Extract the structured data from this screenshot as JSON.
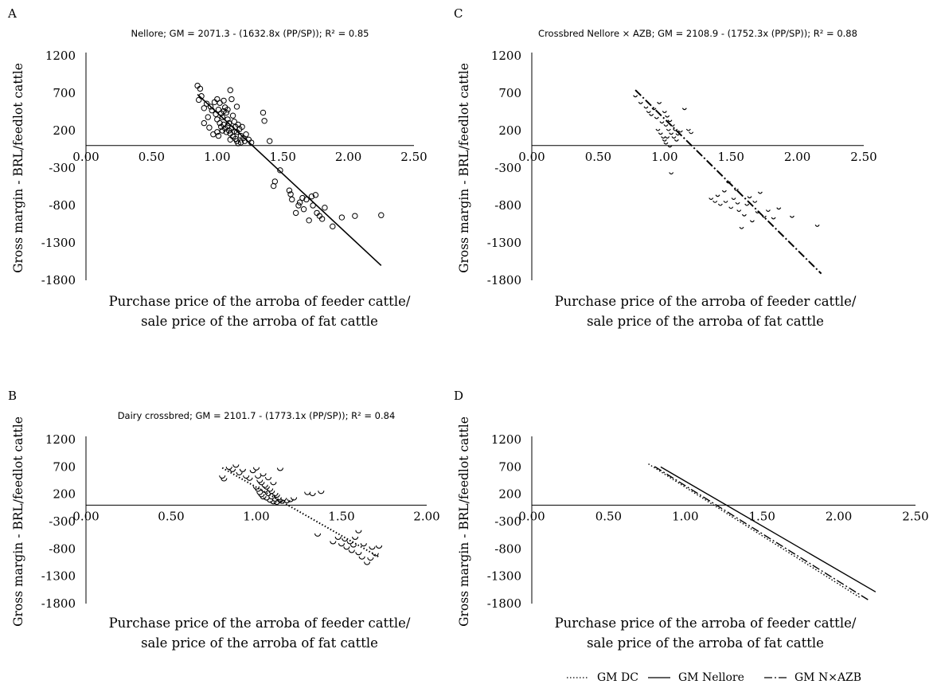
{
  "chart_data": [
    {
      "type": "scatter",
      "panel": "A",
      "title": "Nellore; GM = 2071.3 - (1632.8x (PP/SP)); R² = 0.85",
      "xlabel_lines": [
        "Purchase price of the arroba of feeder cattle/",
        "sale price of the arroba of fat cattle"
      ],
      "ylabel": "Gross margin - BRL/feedlot cattle",
      "xlim": [
        0,
        2.5
      ],
      "ylim": [
        -1800,
        1200
      ],
      "xticks": [
        "0.00",
        "0.50",
        "1.00",
        "1.50",
        "2.00",
        "2.50"
      ],
      "yticks": [
        "1200",
        "700",
        "200",
        "-300",
        "-800",
        "-1300",
        "-1800"
      ],
      "fit": {
        "intercept": 2071.3,
        "slope": -1632.8,
        "x_range": [
          0.85,
          2.25
        ],
        "style": "solid"
      },
      "marker": "circle",
      "series": [
        {
          "values": [
            [
              0.85,
              800
            ],
            [
              0.87,
              760
            ],
            [
              0.88,
              660
            ],
            [
              0.86,
              610
            ],
            [
              0.9,
              500
            ],
            [
              0.92,
              560
            ],
            [
              0.95,
              520
            ],
            [
              0.96,
              470
            ],
            [
              0.98,
              580
            ],
            [
              1.0,
              620
            ],
            [
              1.02,
              570
            ],
            [
              1.01,
              480
            ],
            [
              1.03,
              430
            ],
            [
              1.05,
              600
            ],
            [
              1.04,
              380
            ],
            [
              1.06,
              510
            ],
            [
              1.07,
              440
            ],
            [
              1.08,
              350
            ],
            [
              1.1,
              740
            ],
            [
              1.09,
              300
            ],
            [
              1.11,
              620
            ],
            [
              1.12,
              400
            ],
            [
              1.13,
              320
            ],
            [
              1.14,
              250
            ],
            [
              1.15,
              180
            ],
            [
              1.16,
              280
            ],
            [
              1.17,
              220
            ],
            [
              1.18,
              130
            ],
            [
              1.19,
              250
            ],
            [
              1.2,
              100
            ],
            [
              1.21,
              60
            ],
            [
              1.22,
              150
            ],
            [
              1.24,
              80
            ],
            [
              1.26,
              40
            ],
            [
              1.0,
              350
            ],
            [
              1.02,
              300
            ],
            [
              1.03,
              250
            ],
            [
              1.04,
              200
            ],
            [
              1.05,
              280
            ],
            [
              1.06,
              230
            ],
            [
              1.07,
              180
            ],
            [
              1.08,
              260
            ],
            [
              1.09,
              200
            ],
            [
              1.1,
              160
            ],
            [
              1.11,
              230
            ],
            [
              1.12,
              120
            ],
            [
              1.13,
              190
            ],
            [
              1.14,
              90
            ],
            [
              1.15,
              60
            ],
            [
              1.16,
              30
            ],
            [
              1.0,
              180
            ],
            [
              1.01,
              130
            ],
            [
              0.97,
              150
            ],
            [
              0.94,
              240
            ],
            [
              0.9,
              300
            ],
            [
              0.93,
              380
            ],
            [
              0.99,
              420
            ],
            [
              1.05,
              460
            ],
            [
              1.08,
              480
            ],
            [
              1.15,
              520
            ],
            [
              1.1,
              80
            ],
            [
              1.18,
              40
            ],
            [
              1.35,
              440
            ],
            [
              1.36,
              330
            ],
            [
              1.4,
              60
            ],
            [
              1.48,
              -330
            ],
            [
              1.44,
              -480
            ],
            [
              1.43,
              -540
            ],
            [
              1.55,
              -600
            ],
            [
              1.56,
              -650
            ],
            [
              1.57,
              -720
            ],
            [
              1.6,
              -900
            ],
            [
              1.62,
              -800
            ],
            [
              1.63,
              -760
            ],
            [
              1.65,
              -700
            ],
            [
              1.66,
              -850
            ],
            [
              1.68,
              -720
            ],
            [
              1.7,
              -1000
            ],
            [
              1.72,
              -680
            ],
            [
              1.73,
              -800
            ],
            [
              1.75,
              -660
            ],
            [
              1.76,
              -900
            ],
            [
              1.78,
              -940
            ],
            [
              1.8,
              -980
            ],
            [
              1.82,
              -830
            ],
            [
              1.88,
              -1080
            ],
            [
              1.95,
              -960
            ],
            [
              2.05,
              -940
            ],
            [
              2.25,
              -930
            ]
          ]
        }
      ]
    },
    {
      "type": "scatter",
      "panel": "B",
      "title": "Dairy crossbred; GM = 2101.7 - (1773.1x (PP/SP)); R² = 0.84",
      "xlabel_lines": [
        "Purchase price of the arroba of feeder cattle/",
        "sale price of the arroba of fat cattle"
      ],
      "ylabel": "Gross margin - BRL/feedlot cattle",
      "xlim": [
        0,
        2.0
      ],
      "ylim": [
        -1800,
        1200
      ],
      "xticks": [
        "0.00",
        "0.50",
        "1.00",
        "1.50",
        "2.00"
      ],
      "yticks": [
        "1200",
        "700",
        "200",
        "-300",
        "-800",
        "-1300",
        "-1800"
      ],
      "fit": {
        "intercept": 2101.7,
        "slope": -1773.1,
        "x_range": [
          0.8,
          1.72
        ],
        "style": "dotted"
      },
      "marker": "cup",
      "series": [
        {
          "values": [
            [
              0.8,
              500
            ],
            [
              0.81,
              450
            ],
            [
              0.84,
              660
            ],
            [
              0.86,
              620
            ],
            [
              0.88,
              700
            ],
            [
              0.9,
              560
            ],
            [
              0.92,
              620
            ],
            [
              0.94,
              500
            ],
            [
              0.96,
              460
            ],
            [
              0.98,
              600
            ],
            [
              1.0,
              650
            ],
            [
              1.01,
              500
            ],
            [
              1.02,
              420
            ],
            [
              1.03,
              380
            ],
            [
              1.04,
              540
            ],
            [
              1.05,
              330
            ],
            [
              1.06,
              300
            ],
            [
              1.07,
              470
            ],
            [
              1.08,
              260
            ],
            [
              1.09,
              220
            ],
            [
              1.1,
              380
            ],
            [
              1.11,
              180
            ],
            [
              1.12,
              150
            ],
            [
              1.0,
              300
            ],
            [
              1.01,
              260
            ],
            [
              1.02,
              200
            ],
            [
              1.03,
              160
            ],
            [
              1.04,
              120
            ],
            [
              1.05,
              240
            ],
            [
              1.06,
              100
            ],
            [
              1.07,
              180
            ],
            [
              1.08,
              60
            ],
            [
              1.09,
              120
            ],
            [
              1.1,
              30
            ],
            [
              1.11,
              80
            ],
            [
              1.12,
              20
            ],
            [
              1.13,
              100
            ],
            [
              1.14,
              60
            ],
            [
              1.15,
              40
            ],
            [
              1.16,
              90
            ],
            [
              1.18,
              50
            ],
            [
              1.2,
              70
            ],
            [
              1.22,
              100
            ],
            [
              1.14,
              640
            ],
            [
              1.3,
              200
            ],
            [
              1.33,
              180
            ],
            [
              1.38,
              220
            ],
            [
              1.36,
              -560
            ],
            [
              1.45,
              -700
            ],
            [
              1.48,
              -620
            ],
            [
              1.5,
              -740
            ],
            [
              1.52,
              -650
            ],
            [
              1.53,
              -800
            ],
            [
              1.55,
              -700
            ],
            [
              1.56,
              -860
            ],
            [
              1.57,
              -760
            ],
            [
              1.58,
              -620
            ],
            [
              1.6,
              -900
            ],
            [
              1.6,
              -500
            ],
            [
              1.62,
              -980
            ],
            [
              1.63,
              -740
            ],
            [
              1.65,
              -1080
            ],
            [
              1.67,
              -1000
            ],
            [
              1.68,
              -800
            ],
            [
              1.7,
              -920
            ],
            [
              1.72,
              -780
            ]
          ]
        }
      ]
    },
    {
      "type": "scatter",
      "panel": "C",
      "title": "Crossbred Nellore × AZB; GM = 2108.9 - (1752.3x (PP/SP)); R² = 0.88",
      "xlabel_lines": [
        "Purchase price of the arroba of feeder cattle/",
        "sale price of the arroba of fat cattle"
      ],
      "ylabel": "Gross margin - BRL/feedlot cattle",
      "xlim": [
        0,
        2.5
      ],
      "ylim": [
        -1800,
        1200
      ],
      "xticks": [
        "0.00",
        "0.50",
        "1.00",
        "1.50",
        "2.00",
        "2.50"
      ],
      "yticks": [
        "1200",
        "700",
        "200",
        "-300",
        "-800",
        "-1300",
        "-1800"
      ],
      "fit": {
        "intercept": 2108.9,
        "slope": -1752.3,
        "x_range": [
          0.78,
          2.18
        ],
        "style": "dashdot"
      },
      "marker": "tick",
      "series": [
        {
          "values": [
            [
              0.78,
              650
            ],
            [
              0.82,
              560
            ],
            [
              0.86,
              500
            ],
            [
              0.88,
              440
            ],
            [
              0.9,
              400
            ],
            [
              0.92,
              480
            ],
            [
              0.94,
              360
            ],
            [
              0.96,
              560
            ],
            [
              0.98,
              300
            ],
            [
              1.0,
              440
            ],
            [
              1.01,
              260
            ],
            [
              1.02,
              380
            ],
            [
              1.03,
              200
            ],
            [
              1.04,
              320
            ],
            [
              1.05,
              150
            ],
            [
              1.06,
              260
            ],
            [
              1.07,
              100
            ],
            [
              1.08,
              200
            ],
            [
              1.09,
              60
            ],
            [
              1.1,
              140
            ],
            [
              1.12,
              180
            ],
            [
              1.15,
              480
            ],
            [
              1.18,
              200
            ],
            [
              1.2,
              160
            ],
            [
              0.95,
              200
            ],
            [
              0.97,
              150
            ],
            [
              0.99,
              100
            ],
            [
              1.0,
              60
            ],
            [
              1.01,
              20
            ],
            [
              1.02,
              100
            ],
            [
              1.04,
              -20
            ],
            [
              1.05,
              -380
            ],
            [
              1.35,
              -720
            ],
            [
              1.38,
              -760
            ],
            [
              1.4,
              -680
            ],
            [
              1.42,
              -800
            ],
            [
              1.45,
              -620
            ],
            [
              1.46,
              -760
            ],
            [
              1.48,
              -500
            ],
            [
              1.5,
              -840
            ],
            [
              1.52,
              -720
            ],
            [
              1.54,
              -600
            ],
            [
              1.55,
              -780
            ],
            [
              1.56,
              -880
            ],
            [
              1.58,
              -1110
            ],
            [
              1.6,
              -940
            ],
            [
              1.62,
              -800
            ],
            [
              1.64,
              -700
            ],
            [
              1.66,
              -1020
            ],
            [
              1.68,
              -760
            ],
            [
              1.7,
              -900
            ],
            [
              1.72,
              -640
            ],
            [
              1.75,
              -960
            ],
            [
              1.78,
              -880
            ],
            [
              1.82,
              -980
            ],
            [
              1.86,
              -850
            ],
            [
              1.96,
              -960
            ],
            [
              2.15,
              -1080
            ]
          ]
        }
      ]
    },
    {
      "type": "line",
      "panel": "D",
      "title": "",
      "xlabel_lines": [
        "Purchase price of the arroba of feeder cattle/",
        "sale price of the arroba of fat cattle"
      ],
      "ylabel": "Gross margin - BRL/feedlot cattle",
      "xlim": [
        0,
        2.5
      ],
      "ylim": [
        -1800,
        1200
      ],
      "xticks": [
        "0.00",
        "0.50",
        "1.00",
        "1.50",
        "2.00",
        "2.50"
      ],
      "yticks": [
        "1200",
        "700",
        "200",
        "-300",
        "-800",
        "-1300",
        "-1800"
      ],
      "series": [
        {
          "name": "GM DC",
          "style": "dotted",
          "intercept": 2101.7,
          "slope": -1773.1,
          "x_range": [
            0.76,
            2.14
          ]
        },
        {
          "name": "GM Nellore",
          "style": "solid",
          "intercept": 2071.3,
          "slope": -1632.8,
          "x_range": [
            0.84,
            2.24
          ]
        },
        {
          "name": "GM N×AZB",
          "style": "dashdot",
          "intercept": 2108.9,
          "slope": -1752.3,
          "x_range": [
            0.8,
            2.2
          ]
        }
      ],
      "legend": "bottom-right"
    }
  ],
  "panel_letters": [
    "A",
    "B",
    "C",
    "D"
  ]
}
